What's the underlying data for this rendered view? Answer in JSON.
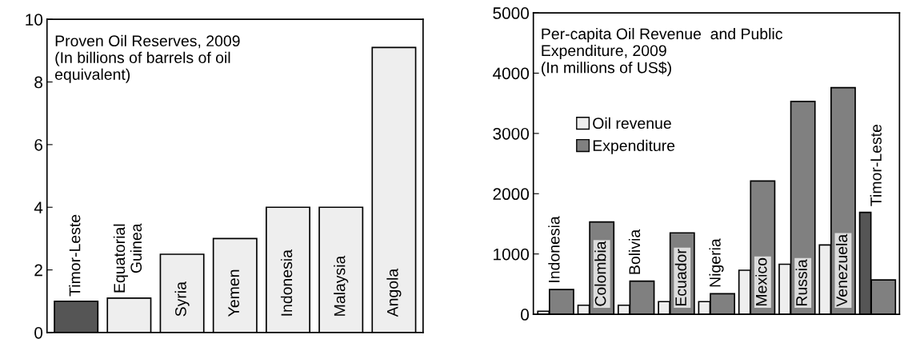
{
  "chart_data": [
    {
      "type": "bar",
      "title": "Proven Oil Reserves, 2009\n(In billions of barrels of oil\nequivalent)",
      "categories": [
        "Timor-Leste",
        "Equatorial\nGuinea",
        "Syria",
        "Yemen",
        "Indonesia",
        "Malaysia",
        "Angola"
      ],
      "values": [
        1.0,
        1.1,
        2.5,
        3.0,
        4.0,
        4.0,
        9.1
      ],
      "colors": [
        "#555555",
        "#eeeeee",
        "#eeeeee",
        "#eeeeee",
        "#eeeeee",
        "#eeeeee",
        "#eeeeee"
      ],
      "ylim": [
        0,
        10
      ],
      "yticks": [
        0,
        2,
        4,
        6,
        8,
        10
      ],
      "tick_labels": "y",
      "grid": false
    },
    {
      "type": "bar",
      "title": "Per-capita Oil Revenue  and Public\nExpenditure, 2009\n(In millions of US$)",
      "categories": [
        "Indonesia",
        "Colombia",
        "Bolivia",
        "Ecuador",
        "Nigeria",
        "Mexico",
        "Russia",
        "Venezuela",
        "Timor-Leste"
      ],
      "series": [
        {
          "name": "Oil revenue",
          "color": "#eeeeee",
          "colors": [
            "#eeeeee",
            "#eeeeee",
            "#eeeeee",
            "#eeeeee",
            "#eeeeee",
            "#eeeeee",
            "#eeeeee",
            "#eeeeee",
            "#555555"
          ],
          "values": [
            50,
            150,
            150,
            210,
            210,
            730,
            830,
            1150,
            1690
          ]
        },
        {
          "name": "Expenditure",
          "color": "#808080",
          "values": [
            410,
            1530,
            550,
            1350,
            340,
            2210,
            3530,
            3760,
            570
          ]
        }
      ],
      "ylim": [
        0,
        5000
      ],
      "yticks": [
        0,
        1000,
        2000,
        3000,
        4000,
        5000
      ],
      "tick_labels": "y",
      "grid": false,
      "legend": "top left"
    }
  ]
}
